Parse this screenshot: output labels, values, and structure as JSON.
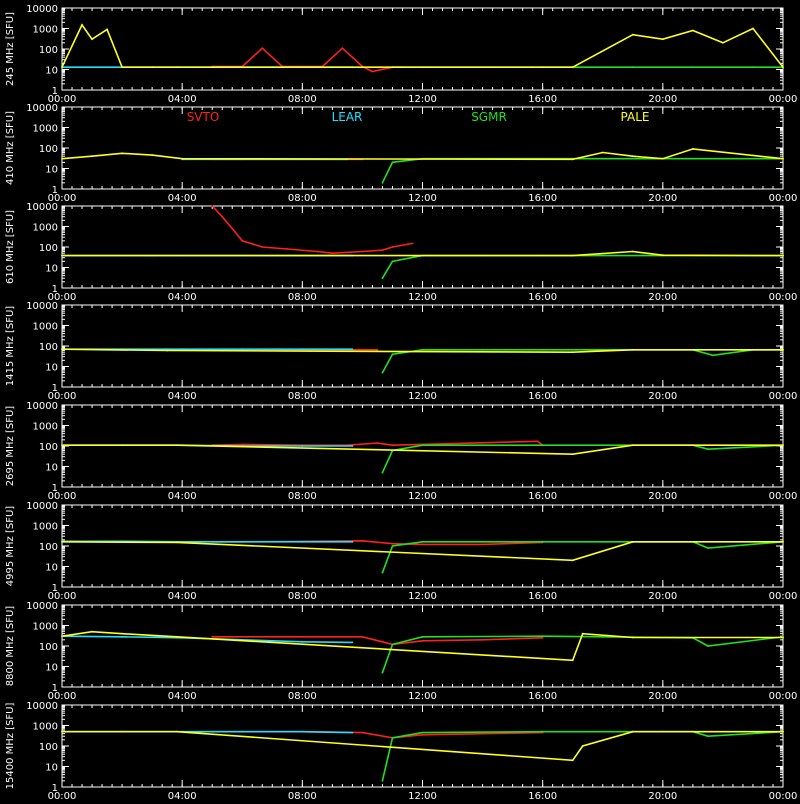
{
  "chart_data": [
    {
      "type": "line",
      "ylabel": "245 MHz [SFU]",
      "ylim": [
        1,
        10000
      ],
      "yscale": "log",
      "y_ticks": [
        "10000",
        "1000",
        "100",
        "10",
        "1"
      ],
      "xlim": [
        "00:00",
        "24:00"
      ],
      "x_ticks": [
        "00:00",
        "04:00",
        "08:00",
        "12:00",
        "16:00",
        "20:00",
        "00:00"
      ],
      "legend": [],
      "series": [
        {
          "color": "#ff2020",
          "x": [
            "05:00",
            "06:00",
            "06:40",
            "07:20",
            "08:00",
            "08:40",
            "09:20",
            "10:00",
            "10:20",
            "11:00",
            "11:20"
          ],
          "values": [
            14,
            14,
            110,
            14,
            14,
            14,
            110,
            14,
            8,
            13,
            13
          ]
        },
        {
          "color": "#20e0ff",
          "x": [
            "00:00",
            "02:00",
            "03:50",
            "05:00",
            "07:00",
            "09:00",
            "09:40"
          ],
          "values": [
            13,
            13,
            13,
            13,
            13,
            13,
            13
          ]
        },
        {
          "color": "#20e020",
          "x": [
            "11:00",
            "12:00",
            "14:00",
            "15:40",
            "16:00",
            "17:00",
            "19:00",
            "21:00",
            "23:00",
            "24:00"
          ],
          "values": [
            13,
            13,
            13,
            13,
            13,
            13,
            13,
            13,
            13,
            13
          ]
        },
        {
          "color": "#ffff20",
          "x": [
            "00:00",
            "00:40",
            "01:00",
            "01:30",
            "02:00",
            "03:00",
            "17:00",
            "19:00",
            "20:00",
            "21:00",
            "22:00",
            "23:00",
            "24:00"
          ],
          "values": [
            13,
            1500,
            300,
            900,
            13,
            13,
            13,
            500,
            300,
            800,
            200,
            1000,
            13
          ]
        }
      ]
    },
    {
      "type": "line",
      "ylabel": "410 MHz [SFU]",
      "ylim": [
        1,
        10000
      ],
      "yscale": "log",
      "y_ticks": [
        "10000",
        "1000",
        "100",
        "10",
        "1"
      ],
      "xlim": [
        "00:00",
        "24:00"
      ],
      "x_ticks": [
        "00:00",
        "04:00",
        "08:00",
        "12:00",
        "16:00",
        "20:00",
        "00:00"
      ],
      "legend": [
        {
          "label": "SVTO",
          "color": "#ff2020"
        },
        {
          "label": "LEAR",
          "color": "#20e0ff"
        },
        {
          "label": "SGMR",
          "color": "#20e020"
        },
        {
          "label": "PALE",
          "color": "#ffff20"
        }
      ],
      "series": [
        {
          "color": "#ff2020",
          "x": [
            "05:00",
            "07:00",
            "09:00",
            "10:00"
          ],
          "values": [
            28,
            28,
            28,
            28
          ]
        },
        {
          "color": "#20e0ff",
          "x": [
            "04:00",
            "06:00",
            "08:00",
            "09:30"
          ],
          "values": [
            28,
            28,
            28,
            28
          ]
        },
        {
          "color": "#20e020",
          "x": [
            "10:40",
            "11:00",
            "12:00",
            "14:00",
            "15:50",
            "16:00",
            "17:00",
            "20:00",
            "24:00"
          ],
          "values": [
            2,
            20,
            30,
            30,
            30,
            30,
            30,
            30,
            30
          ]
        },
        {
          "color": "#ffff20",
          "x": [
            "00:00",
            "01:00",
            "02:00",
            "03:00",
            "04:00",
            "17:00",
            "18:00",
            "19:00",
            "20:00",
            "21:00",
            "24:00"
          ],
          "values": [
            30,
            40,
            55,
            45,
            30,
            28,
            60,
            40,
            30,
            90,
            30
          ]
        }
      ]
    },
    {
      "type": "line",
      "ylabel": "610 MHz [SFU]",
      "ylim": [
        1,
        10000
      ],
      "yscale": "log",
      "y_ticks": [
        "10000",
        "1000",
        "100",
        "10",
        "1"
      ],
      "xlim": [
        "00:00",
        "24:00"
      ],
      "x_ticks": [
        "00:00",
        "04:00",
        "08:00",
        "12:00",
        "16:00",
        "20:00",
        "00:00"
      ],
      "legend": [],
      "series": [
        {
          "color": "#ff2020",
          "x": [
            "05:00",
            "05:20",
            "05:40",
            "06:00",
            "06:40",
            "07:30",
            "08:30",
            "09:00",
            "10:00",
            "10:40",
            "11:00",
            "11:40"
          ],
          "values": [
            10000,
            3000,
            800,
            200,
            100,
            80,
            60,
            50,
            60,
            70,
            100,
            150
          ]
        },
        {
          "color": "#20e0ff",
          "x": [
            "00:00",
            "02:00",
            "04:00",
            "06:00",
            "08:00",
            "09:40"
          ],
          "values": [
            38,
            38,
            38,
            38,
            38,
            38
          ]
        },
        {
          "color": "#20e020",
          "x": [
            "10:40",
            "11:00",
            "12:00",
            "14:00",
            "16:00",
            "17:00",
            "20:00",
            "24:00"
          ],
          "values": [
            3,
            20,
            38,
            38,
            38,
            38,
            38,
            38
          ]
        },
        {
          "color": "#ffff20",
          "x": [
            "00:00",
            "03:00",
            "17:00",
            "19:00",
            "20:00",
            "24:00"
          ],
          "values": [
            38,
            38,
            38,
            60,
            40,
            38
          ]
        }
      ]
    },
    {
      "type": "line",
      "ylabel": "1415 MHz [SFU]",
      "ylim": [
        1,
        10000
      ],
      "yscale": "log",
      "y_ticks": [
        "10000",
        "1000",
        "100",
        "10",
        "1"
      ],
      "xlim": [
        "00:00",
        "24:00"
      ],
      "x_ticks": [
        "00:00",
        "04:00",
        "08:00",
        "12:00",
        "16:00",
        "20:00",
        "00:00"
      ],
      "legend": [],
      "series": [
        {
          "color": "#ff2020",
          "x": [
            "05:00",
            "07:00",
            "09:00",
            "10:30"
          ],
          "values": [
            65,
            65,
            65,
            65
          ]
        },
        {
          "color": "#20e0ff",
          "x": [
            "00:00",
            "02:00",
            "04:00",
            "06:00",
            "08:00",
            "09:40"
          ],
          "values": [
            70,
            70,
            70,
            70,
            70,
            70
          ]
        },
        {
          "color": "#20e020",
          "x": [
            "10:40",
            "11:00",
            "12:00",
            "14:00",
            "16:00",
            "18:00",
            "21:00",
            "21:40",
            "23:00",
            "24:00"
          ],
          "values": [
            5,
            40,
            65,
            65,
            65,
            65,
            65,
            35,
            65,
            65
          ]
        },
        {
          "color": "#ffff20",
          "x": [
            "00:00",
            "03:30",
            "17:00",
            "19:00",
            "24:00"
          ],
          "values": [
            70,
            60,
            50,
            65,
            65
          ]
        }
      ]
    },
    {
      "type": "line",
      "ylabel": "2695 MHz [SFU]",
      "ylim": [
        1,
        10000
      ],
      "yscale": "log",
      "y_ticks": [
        "10000",
        "1000",
        "100",
        "10",
        "1"
      ],
      "xlim": [
        "00:00",
        "24:00"
      ],
      "x_ticks": [
        "00:00",
        "04:00",
        "08:00",
        "12:00",
        "16:00",
        "20:00",
        "00:00"
      ],
      "legend": [],
      "series": [
        {
          "color": "#ff2020",
          "x": [
            "05:00",
            "06:00",
            "08:00",
            "09:30",
            "10:30",
            "11:00",
            "15:50",
            "16:00"
          ],
          "values": [
            110,
            120,
            110,
            110,
            140,
            110,
            170,
            110
          ]
        },
        {
          "color": "#20e0ff",
          "x": [
            "00:00",
            "02:00",
            "04:00",
            "06:00",
            "08:00",
            "09:40"
          ],
          "values": [
            110,
            110,
            110,
            100,
            100,
            100
          ]
        },
        {
          "color": "#20e020",
          "x": [
            "10:40",
            "11:00",
            "12:00",
            "16:00",
            "18:00",
            "21:00",
            "21:30",
            "24:00"
          ],
          "values": [
            5,
            60,
            110,
            110,
            110,
            110,
            70,
            110
          ]
        },
        {
          "color": "#ffff20",
          "x": [
            "00:00",
            "03:50",
            "17:00",
            "19:00",
            "24:00"
          ],
          "values": [
            110,
            110,
            40,
            110,
            110
          ]
        }
      ]
    },
    {
      "type": "line",
      "ylabel": "4995 MHz [SFU]",
      "ylim": [
        1,
        10000
      ],
      "yscale": "log",
      "y_ticks": [
        "10000",
        "1000",
        "100",
        "10",
        "1"
      ],
      "xlim": [
        "00:00",
        "24:00"
      ],
      "x_ticks": [
        "00:00",
        "04:00",
        "08:00",
        "12:00",
        "16:00",
        "20:00",
        "00:00"
      ],
      "legend": [],
      "series": [
        {
          "color": "#ff2020",
          "x": [
            "05:00",
            "06:00",
            "08:00",
            "10:00",
            "11:00",
            "12:00",
            "14:00",
            "16:00"
          ],
          "values": [
            160,
            160,
            170,
            180,
            130,
            120,
            120,
            150
          ]
        },
        {
          "color": "#20e0ff",
          "x": [
            "00:00",
            "02:00",
            "04:00",
            "06:00",
            "08:00",
            "09:40"
          ],
          "values": [
            170,
            170,
            160,
            160,
            160,
            160
          ]
        },
        {
          "color": "#20e020",
          "x": [
            "10:40",
            "11:00",
            "12:00",
            "16:00",
            "18:00",
            "21:00",
            "21:30",
            "24:00"
          ],
          "values": [
            5,
            100,
            160,
            160,
            160,
            160,
            80,
            160
          ]
        },
        {
          "color": "#ffff20",
          "x": [
            "00:00",
            "03:50",
            "17:00",
            "19:00",
            "24:00"
          ],
          "values": [
            160,
            150,
            20,
            160,
            160
          ]
        }
      ]
    },
    {
      "type": "line",
      "ylabel": "8800 MHz [SFU]",
      "ylim": [
        1,
        10000
      ],
      "yscale": "log",
      "y_ticks": [
        "10000",
        "1000",
        "100",
        "10",
        "1"
      ],
      "xlim": [
        "00:00",
        "24:00"
      ],
      "x_ticks": [
        "00:00",
        "04:00",
        "08:00",
        "12:00",
        "16:00",
        "20:00",
        "00:00"
      ],
      "legend": [],
      "series": [
        {
          "color": "#ff2020",
          "x": [
            "05:00",
            "06:00",
            "08:00",
            "10:00",
            "11:00",
            "12:00",
            "14:00",
            "16:00"
          ],
          "values": [
            280,
            280,
            280,
            280,
            120,
            180,
            200,
            250
          ]
        },
        {
          "color": "#20e0ff",
          "x": [
            "00:00",
            "02:00",
            "04:00",
            "06:00",
            "08:00",
            "09:40"
          ],
          "values": [
            300,
            280,
            250,
            200,
            160,
            150
          ]
        },
        {
          "color": "#20e020",
          "x": [
            "10:40",
            "11:00",
            "12:00",
            "16:00",
            "18:00",
            "21:00",
            "21:30",
            "24:00"
          ],
          "values": [
            5,
            120,
            280,
            300,
            280,
            250,
            100,
            280
          ]
        },
        {
          "color": "#ffff20",
          "x": [
            "00:00",
            "01:00",
            "02:00",
            "03:50",
            "17:00",
            "17:20",
            "19:00",
            "24:00"
          ],
          "values": [
            300,
            500,
            400,
            280,
            20,
            400,
            260,
            260
          ]
        }
      ]
    },
    {
      "type": "line",
      "ylabel": "15400 MHz [SFU]",
      "ylim": [
        1,
        10000
      ],
      "yscale": "log",
      "y_ticks": [
        "10000",
        "1000",
        "100",
        "10",
        "1"
      ],
      "xlim": [
        "00:00",
        "24:00"
      ],
      "x_ticks": [
        "00:00",
        "04:00",
        "08:00",
        "12:00",
        "16:00",
        "20:00",
        "00:00"
      ],
      "legend": [],
      "series": [
        {
          "color": "#ff2020",
          "x": [
            "05:00",
            "06:00",
            "08:00",
            "10:00",
            "11:00",
            "12:00",
            "14:00",
            "16:00"
          ],
          "values": [
            500,
            500,
            500,
            450,
            250,
            350,
            400,
            450
          ]
        },
        {
          "color": "#20e0ff",
          "x": [
            "00:00",
            "02:00",
            "04:00",
            "06:00",
            "08:00",
            "09:40"
          ],
          "values": [
            500,
            500,
            500,
            500,
            500,
            450
          ]
        },
        {
          "color": "#20e020",
          "x": [
            "10:40",
            "11:00",
            "12:00",
            "16:00",
            "18:00",
            "20:00",
            "21:00",
            "21:30",
            "24:00"
          ],
          "values": [
            2,
            250,
            450,
            500,
            500,
            500,
            500,
            300,
            500
          ]
        },
        {
          "color": "#ffff20",
          "x": [
            "00:00",
            "03:50",
            "17:00",
            "17:20",
            "19:00",
            "24:00"
          ],
          "values": [
            500,
            500,
            20,
            100,
            500,
            500
          ]
        }
      ]
    }
  ]
}
